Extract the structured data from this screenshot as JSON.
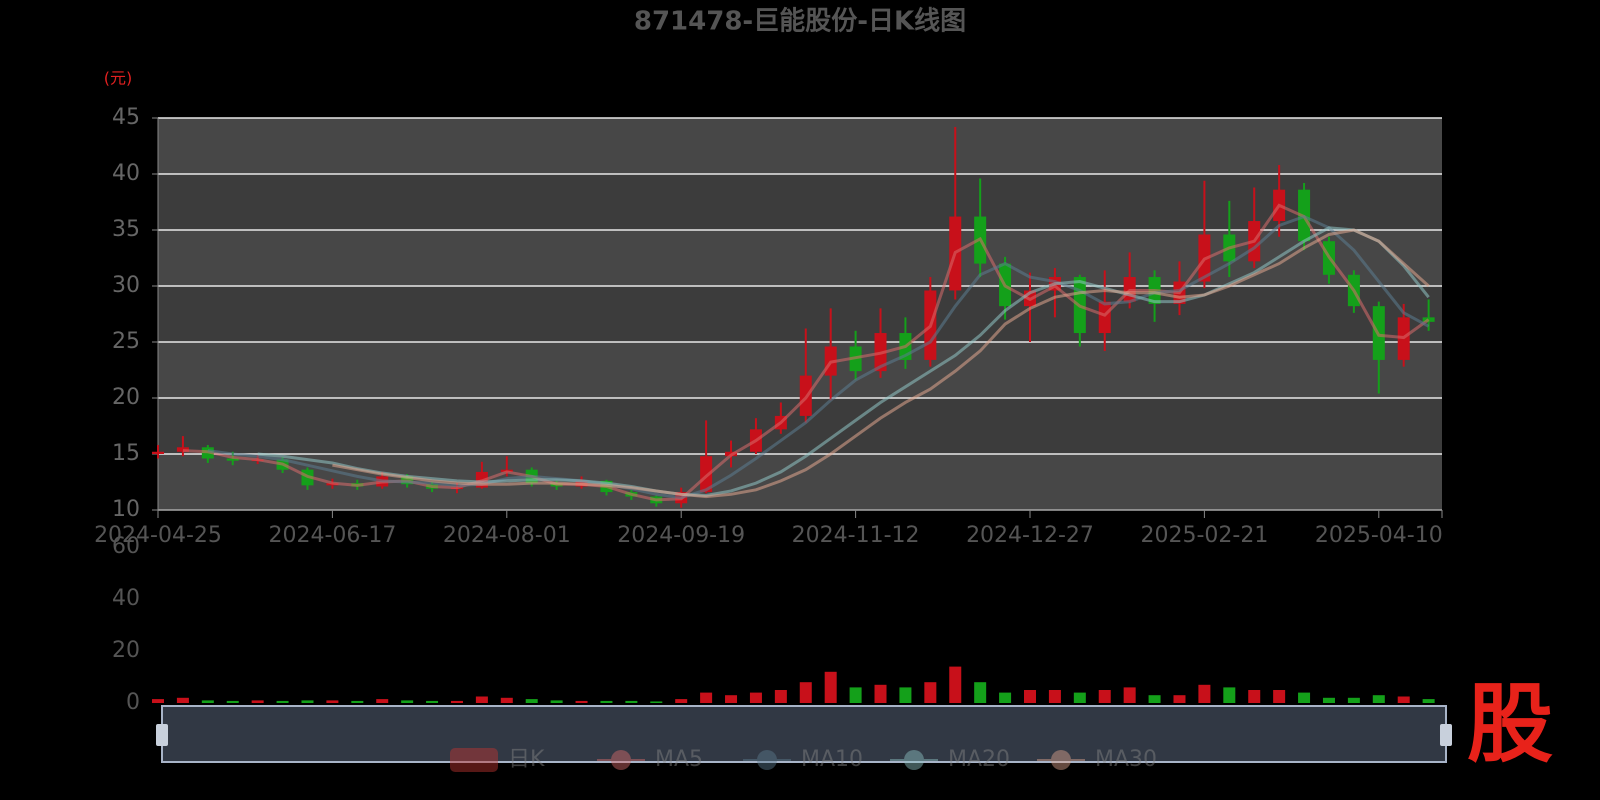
{
  "chart_data": [
    {
      "type": "candlestick",
      "title": "871478-巨能股份-日K线图",
      "y_label": "(元)",
      "watermark": "股",
      "categories": [
        "2024-04-25",
        null,
        null,
        null,
        null,
        null,
        null,
        "2024-06-17",
        null,
        null,
        null,
        null,
        null,
        null,
        "2024-08-01",
        null,
        null,
        null,
        null,
        null,
        null,
        "2024-09-19",
        null,
        null,
        null,
        null,
        null,
        null,
        "2024-11-12",
        null,
        null,
        null,
        null,
        null,
        null,
        "2024-12-27",
        null,
        null,
        null,
        null,
        null,
        null,
        "2025-02-21",
        null,
        null,
        null,
        null,
        null,
        null,
        "2025-04-10",
        null,
        null
      ],
      "ylim": [
        10,
        45
      ],
      "yticks": [
        10,
        15,
        20,
        25,
        30,
        35,
        40,
        45
      ],
      "grid": true,
      "series": [
        {
          "name": "日K",
          "color": "#c23531",
          "up_color": "#c8101a",
          "down_color": "#14a01a",
          "values": [
            [
              15,
              15.2,
              14.6,
              15.8
            ],
            [
              15.2,
              15.6,
              14.8,
              16.6
            ],
            [
              15.6,
              14.6,
              14.2,
              15.8
            ],
            [
              14.6,
              14.4,
              14.0,
              15.2
            ],
            [
              14.4,
              14.5,
              14.1,
              14.9
            ],
            [
              14.5,
              13.6,
              13.3,
              14.7
            ],
            [
              13.6,
              12.2,
              11.8,
              13.8
            ],
            [
              12.2,
              12.4,
              11.9,
              12.8
            ],
            [
              12.4,
              12.1,
              11.8,
              12.7
            ],
            [
              12.1,
              13.0,
              11.9,
              13.4
            ],
            [
              13.0,
              12.3,
              12.0,
              13.2
            ],
            [
              12.3,
              11.9,
              11.6,
              12.5
            ],
            [
              11.9,
              12.0,
              11.5,
              12.4
            ],
            [
              12.0,
              13.4,
              11.9,
              14.3
            ],
            [
              13.4,
              13.6,
              13.0,
              14.8
            ],
            [
              13.6,
              12.4,
              12.1,
              13.8
            ],
            [
              12.4,
              12.1,
              11.8,
              12.6
            ],
            [
              12.1,
              12.6,
              11.9,
              13.0
            ],
            [
              12.6,
              11.6,
              11.3,
              12.7
            ],
            [
              11.6,
              11.2,
              10.9,
              11.8
            ],
            [
              11.2,
              10.6,
              10.3,
              11.3
            ],
            [
              10.6,
              11.6,
              10.2,
              12.0
            ],
            [
              11.6,
              14.8,
              11.5,
              18.0
            ],
            [
              14.8,
              15.2,
              13.8,
              16.2
            ],
            [
              15.2,
              17.2,
              15.0,
              18.2
            ],
            [
              17.2,
              18.4,
              16.8,
              19.6
            ],
            [
              18.4,
              22.0,
              17.8,
              26.2
            ],
            [
              22.0,
              24.6,
              19.8,
              28.0
            ],
            [
              24.6,
              22.4,
              21.6,
              26.0
            ],
            [
              22.4,
              25.8,
              21.8,
              28.0
            ],
            [
              25.8,
              23.4,
              22.6,
              27.2
            ],
            [
              23.4,
              29.6,
              22.8,
              30.8
            ],
            [
              29.6,
              36.2,
              28.8,
              44.2
            ],
            [
              36.2,
              32.0,
              30.8,
              39.6
            ],
            [
              32.0,
              28.2,
              27.0,
              32.6
            ],
            [
              28.2,
              29.6,
              25.0,
              31.2
            ],
            [
              29.6,
              30.8,
              27.2,
              31.6
            ],
            [
              30.8,
              25.8,
              24.6,
              31.0
            ],
            [
              25.8,
              28.6,
              24.2,
              31.4
            ],
            [
              28.6,
              30.8,
              28.0,
              33.0
            ],
            [
              30.8,
              28.4,
              26.8,
              31.4
            ],
            [
              28.4,
              30.4,
              27.4,
              32.2
            ],
            [
              30.4,
              34.6,
              29.8,
              39.4
            ],
            [
              34.6,
              32.2,
              30.8,
              37.6
            ],
            [
              32.2,
              35.8,
              31.6,
              38.8
            ],
            [
              35.8,
              38.6,
              34.4,
              40.8
            ],
            [
              38.6,
              34.0,
              33.2,
              39.2
            ],
            [
              34.0,
              31.0,
              30.2,
              34.4
            ],
            [
              31.0,
              28.2,
              27.6,
              31.4
            ],
            [
              28.2,
              23.4,
              20.4,
              28.6
            ],
            [
              23.4,
              27.2,
              22.8,
              28.4
            ],
            [
              27.2,
              26.8,
              26.0,
              28.8
            ]
          ]
        },
        {
          "name": "MA5",
          "color": "#d96b6b",
          "values": [
            null,
            15.3,
            15.2,
            14.7,
            14.5,
            14.1,
            13.0,
            12.4,
            12.2,
            12.5,
            12.6,
            12.1,
            12.0,
            12.6,
            13.4,
            13.0,
            12.3,
            12.3,
            12.1,
            11.4,
            10.9,
            11.0,
            13.0,
            14.9,
            16.2,
            17.8,
            20.0,
            23.2,
            23.6,
            24.0,
            24.6,
            26.4,
            33.0,
            34.2,
            30.0,
            28.8,
            30.0,
            28.2,
            27.4,
            29.6,
            29.6,
            29.4,
            32.4,
            33.4,
            34.0,
            37.2,
            36.2,
            32.6,
            29.6,
            25.6,
            25.4,
            27.0
          ]
        },
        {
          "name": "MA10",
          "color": "#5b7b8f",
          "values": [
            null,
            null,
            15.3,
            15.0,
            14.8,
            14.5,
            14.0,
            13.5,
            13.0,
            12.6,
            12.5,
            12.4,
            12.2,
            12.3,
            12.8,
            13.0,
            12.8,
            12.6,
            12.3,
            11.9,
            11.4,
            11.1,
            11.8,
            13.1,
            14.6,
            16.2,
            17.8,
            19.8,
            21.6,
            22.8,
            23.8,
            25.0,
            28.2,
            31.0,
            32.0,
            30.8,
            30.4,
            29.6,
            28.4,
            28.6,
            29.4,
            29.6,
            30.8,
            32.0,
            33.4,
            35.4,
            36.2,
            35.2,
            33.2,
            30.4,
            27.6,
            26.4
          ]
        },
        {
          "name": "MA20",
          "color": "#8fc4c4",
          "values": [
            null,
            null,
            null,
            null,
            15.0,
            14.8,
            14.5,
            14.2,
            13.7,
            13.3,
            13.0,
            12.8,
            12.6,
            12.5,
            12.6,
            12.7,
            12.7,
            12.6,
            12.4,
            12.1,
            11.7,
            11.4,
            11.3,
            11.7,
            12.4,
            13.4,
            14.8,
            16.4,
            18.0,
            19.6,
            21.0,
            22.4,
            23.8,
            25.6,
            27.8,
            29.4,
            30.2,
            30.4,
            29.8,
            29.2,
            28.6,
            28.6,
            29.2,
            30.2,
            31.2,
            32.6,
            34.0,
            35.2,
            35.0,
            34.0,
            31.8,
            29.0
          ]
        },
        {
          "name": "MA30",
          "color": "#e0a58e",
          "values": [
            null,
            null,
            null,
            null,
            null,
            null,
            null,
            14.0,
            13.6,
            13.2,
            12.9,
            12.6,
            12.4,
            12.3,
            12.3,
            12.4,
            12.4,
            12.3,
            12.2,
            12.0,
            11.7,
            11.4,
            11.2,
            11.4,
            11.8,
            12.6,
            13.6,
            15.0,
            16.6,
            18.2,
            19.6,
            20.8,
            22.4,
            24.2,
            26.6,
            28.0,
            29.0,
            29.4,
            29.6,
            29.4,
            29.4,
            29.0,
            29.2,
            30.0,
            31.0,
            32.0,
            33.4,
            34.6,
            35.0,
            34.0,
            32.0,
            30.0
          ]
        }
      ]
    },
    {
      "type": "bar",
      "ylim": [
        0,
        60
      ],
      "yticks": [
        0,
        20,
        40,
        60
      ],
      "values": [
        1.5,
        2,
        1,
        0.8,
        1,
        0.8,
        1,
        1,
        0.8,
        1.5,
        1,
        0.8,
        0.8,
        2.5,
        2,
        1.5,
        1,
        0.8,
        0.8,
        0.8,
        0.6,
        1.5,
        4,
        3,
        4,
        5,
        8,
        12,
        6,
        7,
        6,
        8,
        14,
        8,
        4,
        5,
        5,
        4,
        5,
        6,
        3,
        3,
        7,
        6,
        5,
        5,
        4,
        2,
        2,
        3,
        2.5,
        1.5
      ]
    }
  ]
}
